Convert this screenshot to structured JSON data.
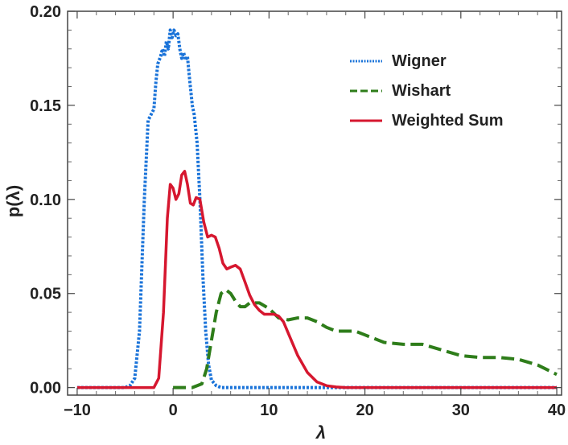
{
  "chart_data": {
    "type": "line",
    "xlabel": "λ",
    "ylabel": "p(λ)",
    "xlim": [
      -11,
      40.5
    ],
    "ylim": [
      -0.004,
      0.2
    ],
    "xticks": [
      -10,
      0,
      10,
      20,
      30,
      40
    ],
    "xtick_labels": [
      "−10",
      "0",
      "10",
      "20",
      "30",
      "40"
    ],
    "yticks": [
      0.0,
      0.05,
      0.1,
      0.15,
      0.2
    ],
    "ytick_labels": [
      "0.00",
      "0.05",
      "0.10",
      "0.15",
      "0.20"
    ],
    "legend_position": "top-right",
    "grid": false,
    "series": [
      {
        "name": "Wigner",
        "color": "#1a73d9",
        "style": "dotted",
        "x": [
          -10,
          -5,
          -4.5,
          -4,
          -3.5,
          -3,
          -2.6,
          -2.3,
          -2.0,
          -1.8,
          -1.6,
          -1.3,
          -1.1,
          -0.9,
          -0.7,
          -0.5,
          -0.3,
          -0.1,
          0.1,
          0.3,
          0.5,
          0.7,
          0.9,
          1.1,
          1.3,
          1.5,
          1.7,
          2.0,
          2.2,
          2.5,
          2.8,
          3.1,
          3.4,
          3.7,
          4.0,
          4.5,
          5.0,
          6.0,
          40
        ],
        "y": [
          0,
          0,
          0.001,
          0.005,
          0.03,
          0.1,
          0.142,
          0.145,
          0.148,
          0.162,
          0.172,
          0.176,
          0.18,
          0.176,
          0.184,
          0.18,
          0.19,
          0.186,
          0.19,
          0.187,
          0.188,
          0.18,
          0.175,
          0.178,
          0.174,
          0.176,
          0.165,
          0.15,
          0.145,
          0.13,
          0.1,
          0.06,
          0.03,
          0.012,
          0.004,
          0.001,
          0,
          0,
          0
        ]
      },
      {
        "name": "Wishart",
        "color": "#2e7d1a",
        "style": "dashed",
        "x": [
          0,
          2,
          3,
          3.5,
          4,
          4.5,
          5,
          5.5,
          6,
          6.5,
          7,
          7.5,
          8,
          9,
          10,
          11,
          12,
          13,
          14,
          15,
          16,
          17,
          18,
          19,
          20,
          22,
          24,
          26,
          28,
          30,
          32,
          34,
          36,
          38,
          40
        ],
        "y": [
          0,
          0,
          0.002,
          0.01,
          0.025,
          0.04,
          0.05,
          0.052,
          0.05,
          0.046,
          0.043,
          0.043,
          0.045,
          0.045,
          0.042,
          0.037,
          0.036,
          0.037,
          0.037,
          0.035,
          0.032,
          0.03,
          0.03,
          0.03,
          0.028,
          0.024,
          0.023,
          0.023,
          0.02,
          0.017,
          0.016,
          0.016,
          0.015,
          0.012,
          0.007
        ]
      },
      {
        "name": "Weighted Sum",
        "color": "#d6172f",
        "style": "solid",
        "x": [
          -10,
          -2,
          -1.5,
          -1,
          -0.6,
          -0.3,
          0,
          0.3,
          0.6,
          0.9,
          1.2,
          1.5,
          1.8,
          2.1,
          2.4,
          2.8,
          3.2,
          3.6,
          4.0,
          4.4,
          4.8,
          5.2,
          5.6,
          6.0,
          6.5,
          7.0,
          7.5,
          8.0,
          8.5,
          9.0,
          9.5,
          10.0,
          10.5,
          11.0,
          11.5,
          12.0,
          13.0,
          14.0,
          15.0,
          16.0,
          17.0,
          18.0,
          20.0,
          40
        ],
        "y": [
          0,
          0,
          0.005,
          0.04,
          0.09,
          0.108,
          0.106,
          0.1,
          0.103,
          0.113,
          0.115,
          0.108,
          0.098,
          0.097,
          0.101,
          0.1,
          0.088,
          0.08,
          0.081,
          0.08,
          0.074,
          0.066,
          0.063,
          0.064,
          0.065,
          0.063,
          0.056,
          0.049,
          0.044,
          0.041,
          0.039,
          0.039,
          0.039,
          0.038,
          0.035,
          0.029,
          0.017,
          0.008,
          0.003,
          0.001,
          0.0003,
          0,
          0,
          0
        ]
      }
    ]
  }
}
